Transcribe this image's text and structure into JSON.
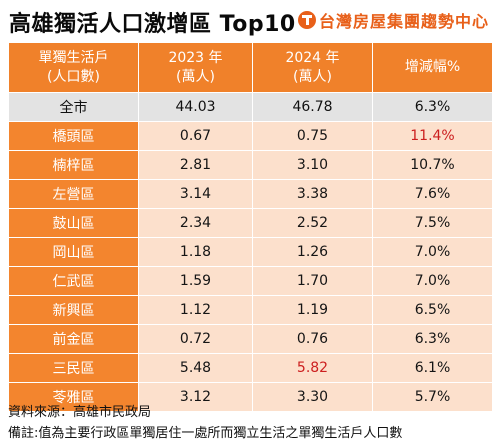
{
  "header": {
    "title": "高雄獨活人口激增區 Top10",
    "brand_name": "台灣房屋集團趨勢中心",
    "brand_color": "#e8601a"
  },
  "table": {
    "columns": [
      {
        "line1": "單獨生活戶",
        "line2": "(人口數)"
      },
      {
        "line1": "2023 年",
        "line2": "(萬人)"
      },
      {
        "line1": "2024 年",
        "line2": "(萬人)"
      },
      {
        "line1": "增減幅%",
        "line2": ""
      }
    ],
    "rows": [
      {
        "region": "全市",
        "y2023": "44.03",
        "y2024": "46.78",
        "change": "6.3%"
      },
      {
        "region": "橋頭區",
        "y2023": "0.67",
        "y2024": "0.75",
        "change": "11.4%"
      },
      {
        "region": "楠梓區",
        "y2023": "2.81",
        "y2024": "3.10",
        "change": "10.7%"
      },
      {
        "region": "左營區",
        "y2023": "3.14",
        "y2024": "3.38",
        "change": "7.6%"
      },
      {
        "region": "鼓山區",
        "y2023": "2.34",
        "y2024": "2.52",
        "change": "7.5%"
      },
      {
        "region": "岡山區",
        "y2023": "1.18",
        "y2024": "1.26",
        "change": "7.0%"
      },
      {
        "region": "仁武區",
        "y2023": "1.59",
        "y2024": "1.70",
        "change": "7.0%"
      },
      {
        "region": "新興區",
        "y2023": "1.12",
        "y2024": "1.19",
        "change": "6.5%"
      },
      {
        "region": "前金區",
        "y2023": "0.72",
        "y2024": "0.76",
        "change": "6.3%"
      },
      {
        "region": "三民區",
        "y2023": "5.48",
        "y2024": "5.82",
        "change": "6.1%"
      },
      {
        "region": "苓雅區",
        "y2023": "3.12",
        "y2024": "3.30",
        "change": "5.7%"
      }
    ],
    "colors": {
      "header_bg": "#f0812a",
      "region_bg": "#f3852e",
      "value_bg": "#fce0cc",
      "total_bg": "#e3e3e3",
      "highlight_text": "#cc1f1f"
    }
  },
  "footer": {
    "source": "資料來源：高雄市民政局",
    "note": "備註:值為主要行政區單獨居住一處所而獨立生活之單獨生活戶人口數"
  }
}
